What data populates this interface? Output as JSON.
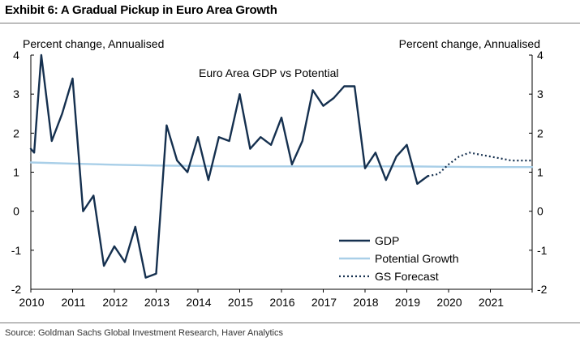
{
  "header": {
    "exhibit_title": "Exhibit 6: A Gradual Pickup in Euro Area Growth"
  },
  "footer": {
    "source": "Source: Goldman Sachs Global Investment Research, Haver Analytics"
  },
  "colors": {
    "gdp": "#15304f",
    "potential": "#a9cfe8",
    "forecast": "#15304f",
    "axis": "#000000"
  },
  "chart_data": {
    "type": "line",
    "title": "Euro Area GDP vs Potential",
    "ylabel_left": "Percent change, Annualised",
    "ylabel_right": "Percent change, Annualised",
    "xlim": [
      2010,
      2022
    ],
    "ylim": [
      -2,
      4
    ],
    "x_ticks": [
      "2010",
      "2011",
      "2012",
      "2013",
      "2014",
      "2015",
      "2016",
      "2017",
      "2018",
      "2019",
      "2020",
      "2021"
    ],
    "y_ticks_left": [
      "-2",
      "-1",
      "0",
      "1",
      "2",
      "3",
      "4"
    ],
    "y_ticks_right": [
      "-2",
      "-1",
      "0",
      "1",
      "2",
      "3",
      "4"
    ],
    "legend": {
      "position": "bottom-right",
      "entries": [
        "GDP",
        "Potential Growth",
        "GS Forecast"
      ]
    },
    "series": [
      {
        "name": "GDP",
        "style": "solid",
        "x": [
          2010.0,
          2010.08,
          2010.25,
          2010.5,
          2010.75,
          2011.0,
          2011.25,
          2011.5,
          2011.75,
          2012.0,
          2012.25,
          2012.5,
          2012.75,
          2013.0,
          2013.25,
          2013.5,
          2013.75,
          2014.0,
          2014.25,
          2014.5,
          2014.75,
          2015.0,
          2015.25,
          2015.5,
          2015.75,
          2016.0,
          2016.25,
          2016.5,
          2016.75,
          2017.0,
          2017.25,
          2017.5,
          2017.75,
          2018.0,
          2018.25,
          2018.5,
          2018.75,
          2019.0,
          2019.25,
          2019.5
        ],
        "values": [
          1.6,
          1.5,
          4.0,
          1.8,
          2.5,
          3.4,
          0.0,
          0.4,
          -1.4,
          -0.9,
          -1.3,
          -0.4,
          -1.7,
          -1.6,
          2.2,
          1.3,
          1.0,
          1.9,
          0.8,
          1.9,
          1.8,
          3.0,
          1.6,
          1.9,
          1.7,
          2.4,
          1.2,
          1.8,
          3.1,
          2.7,
          2.9,
          3.2,
          3.2,
          1.1,
          1.5,
          0.8,
          1.4,
          1.7,
          0.7,
          0.9
        ]
      },
      {
        "name": "Potential Growth",
        "style": "solid",
        "x": [
          2010.0,
          2011.0,
          2012.0,
          2013.0,
          2014.0,
          2015.0,
          2016.0,
          2017.0,
          2018.0,
          2019.0,
          2020.0,
          2021.0,
          2022.0
        ],
        "values": [
          1.25,
          1.22,
          1.19,
          1.17,
          1.16,
          1.15,
          1.15,
          1.15,
          1.15,
          1.15,
          1.14,
          1.13,
          1.13
        ]
      },
      {
        "name": "GS Forecast",
        "style": "dotted",
        "x": [
          2019.5,
          2019.75,
          2020.0,
          2020.25,
          2020.5,
          2020.75,
          2021.0,
          2021.25,
          2021.5,
          2021.75,
          2022.0
        ],
        "values": [
          0.9,
          0.95,
          1.2,
          1.4,
          1.5,
          1.45,
          1.4,
          1.35,
          1.3,
          1.3,
          1.3
        ]
      }
    ]
  }
}
